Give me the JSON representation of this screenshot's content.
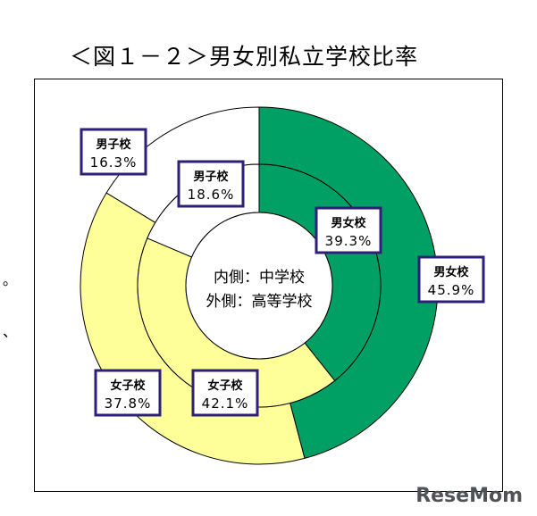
{
  "title": "＜図１－２＞男女別私立学校比率",
  "side_marks": [
    "。",
    "、"
  ],
  "watermark": "ReseMom",
  "chart_data": {
    "type": "pie",
    "title": "＜図１－２＞男女別私立学校比率",
    "center_label": [
      "内側：中学校",
      "外側：高等学校"
    ],
    "rings": [
      {
        "ring": "inner",
        "name": "中学校",
        "slices": [
          {
            "label": "男女校",
            "value": 39.3,
            "text": "39.3%",
            "color": "#00a064"
          },
          {
            "label": "女子校",
            "value": 42.1,
            "text": "42.1%",
            "color": "#ffff99"
          },
          {
            "label": "男子校",
            "value": 18.6,
            "text": "18.6%",
            "color": "#ffffff"
          }
        ]
      },
      {
        "ring": "outer",
        "name": "高等学校",
        "slices": [
          {
            "label": "男女校",
            "value": 45.9,
            "text": "45.9%",
            "color": "#00a064"
          },
          {
            "label": "女子校",
            "value": 37.8,
            "text": "37.8%",
            "color": "#ffff99"
          },
          {
            "label": "男子校",
            "value": 16.3,
            "text": "16.3%",
            "color": "#ffffff"
          }
        ]
      }
    ],
    "label_border_color": "#2e1f7a"
  }
}
